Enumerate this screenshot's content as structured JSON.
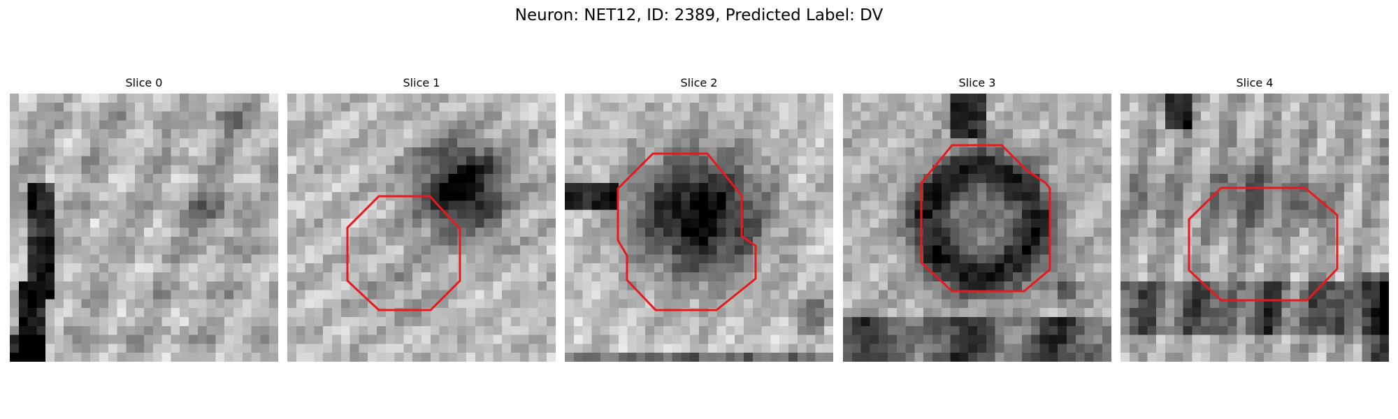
{
  "figure": {
    "title": "Neuron: NET12, ID: 2389, Predicted Label: DV",
    "roi_color": "#e8191d"
  },
  "slices": [
    {
      "title": "Slice 0",
      "roi": false
    },
    {
      "title": "Slice 1",
      "roi": true
    },
    {
      "title": "Slice 2",
      "roi": true
    },
    {
      "title": "Slice 3",
      "roi": true
    },
    {
      "title": "Slice 4",
      "roi": true
    }
  ]
}
